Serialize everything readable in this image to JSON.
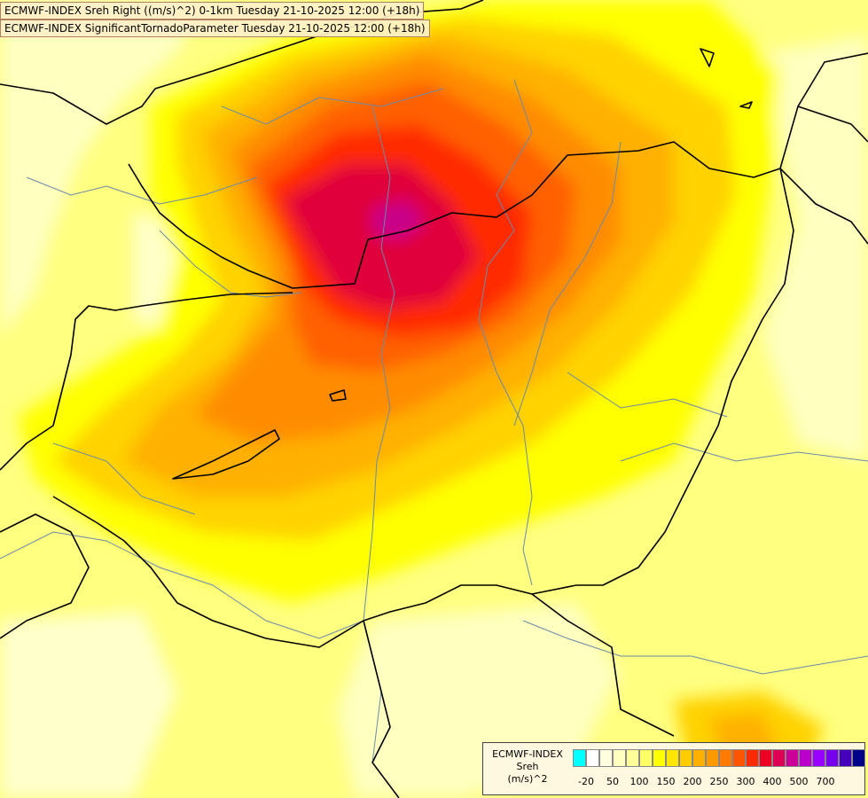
{
  "header": {
    "line1": "ECMWF-INDEX Sreh Right ((m/s)^2) 0-1km Tuesday 21-10-2025 12:00 (+18h)",
    "line2": "ECMWF-INDEX SignificantTornadoParameter Tuesday 21-10-2025 12:00 (+18h)"
  },
  "legend": {
    "source": "ECMWF-INDEX",
    "param": "Sreh",
    "unit": "(m/s)^2",
    "colors": [
      "#00ffff",
      "#ffffff",
      "#ffffe0",
      "#ffffc0",
      "#ffff99",
      "#ffff66",
      "#ffff00",
      "#ffe600",
      "#ffcc00",
      "#ffb000",
      "#ff9900",
      "#ff7a00",
      "#ff5500",
      "#ff2a00",
      "#ee0022",
      "#dd0055",
      "#cc0099",
      "#bb00cc",
      "#9900ff",
      "#7700ee",
      "#4400bb",
      "#000088"
    ],
    "ticks": [
      {
        "label": "-20",
        "i": 1
      },
      {
        "label": "50",
        "i": 3
      },
      {
        "label": "100",
        "i": 5
      },
      {
        "label": "150",
        "i": 7
      },
      {
        "label": "200",
        "i": 9
      },
      {
        "label": "250",
        "i": 11
      },
      {
        "label": "300",
        "i": 13
      },
      {
        "label": "400",
        "i": 15
      },
      {
        "label": "500",
        "i": 17
      },
      {
        "label": "700",
        "i": 19
      }
    ]
  }
}
